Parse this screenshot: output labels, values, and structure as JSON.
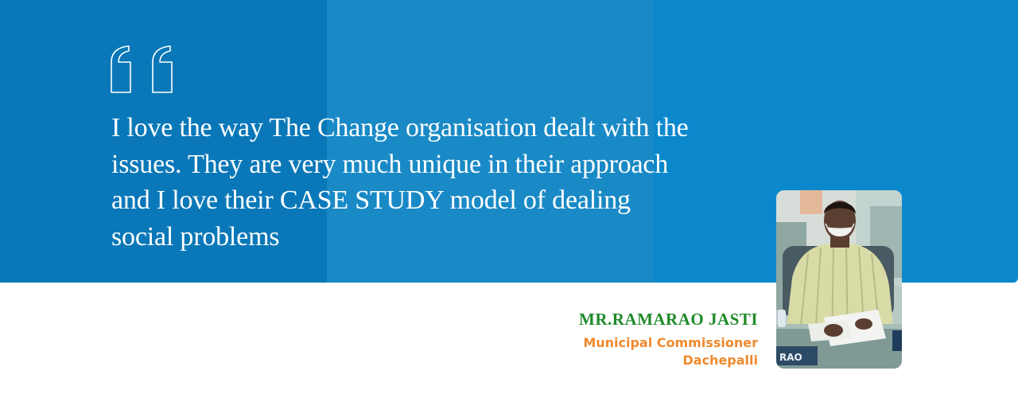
{
  "testimonial": {
    "quote_lines": [
      "I love the way The Change organisation dealt with the",
      "issues. They are very much unique in their approach",
      "and I love their CASE STUDY model of dealing",
      "social problems"
    ],
    "quote_icon": "quotation-mark-icon"
  },
  "author": {
    "name": "MR.RAMARAO JASTI",
    "role": "Municipal Commissioner",
    "place": "Dachepalli",
    "photo_icon": "person-photo"
  },
  "colors": {
    "banner_blue": "#0b88cc",
    "banner_left": "#0a78b8",
    "banner_mid": "#1a8ac6",
    "name_green": "#1f8a2a",
    "role_orange": "#ef8a2e"
  }
}
